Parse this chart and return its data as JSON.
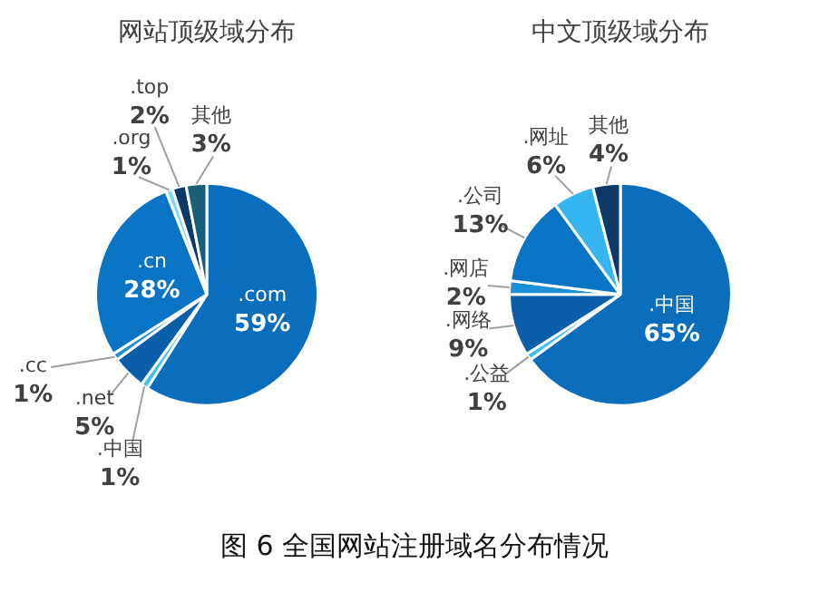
{
  "chart_data": [
    {
      "type": "pie",
      "title": "网站顶级域分布",
      "categories": [
        ".com",
        ".中国",
        ".net",
        ".cc",
        ".cn",
        ".org",
        ".top",
        "其他"
      ],
      "values": [
        59,
        1,
        5,
        1,
        28,
        1,
        2,
        3
      ],
      "value_labels": [
        "59%",
        "1%",
        "5%",
        "1%",
        "28%",
        "1%",
        "2%",
        "3%"
      ],
      "colors": [
        "#0a6ebd",
        "#3cc0f0",
        "#0b5ea8",
        "#1e90d8",
        "#0a74c4",
        "#7fd8f8",
        "#0b3a66",
        "#1b5e78"
      ],
      "legend": false
    },
    {
      "type": "pie",
      "title": "中文顶级域分布",
      "categories": [
        ".中国",
        ".公益",
        ".网络",
        ".网店",
        ".公司",
        ".网址",
        "其他"
      ],
      "values": [
        65,
        1,
        9,
        2,
        13,
        6,
        4
      ],
      "value_labels": [
        "65%",
        "1%",
        "9%",
        "2%",
        "13%",
        "6%",
        "4%"
      ],
      "colors": [
        "#0a6ebd",
        "#3cc0f0",
        "#0b5ea8",
        "#1e90d8",
        "#0a74c4",
        "#35b6f0",
        "#0b3a66"
      ],
      "legend": false,
      "annotations": [
        "图 6 全国网站注册域名分布情况"
      ]
    }
  ]
}
